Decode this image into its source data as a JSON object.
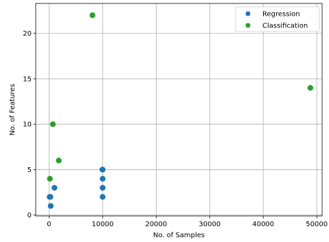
{
  "chart_data": {
    "type": "scatter",
    "title": "",
    "xlabel": "No. of Samples",
    "ylabel": "No. of Features",
    "xlim": [
      -2500,
      51000
    ],
    "ylim": [
      -0.1,
      23.3
    ],
    "xticks": [
      0,
      10000,
      20000,
      30000,
      40000,
      50000
    ],
    "yticks": [
      0,
      5,
      10,
      15,
      20
    ],
    "grid": true,
    "legend_position": "top-right",
    "series": [
      {
        "name": "Regression",
        "color": "#1f77b4",
        "points": [
          {
            "x": 100,
            "y": 2
          },
          {
            "x": 250,
            "y": 2
          },
          {
            "x": 300,
            "y": 1
          },
          {
            "x": 1000,
            "y": 3
          },
          {
            "x": 9950,
            "y": 5
          },
          {
            "x": 10000,
            "y": 5
          },
          {
            "x": 10000,
            "y": 4
          },
          {
            "x": 10000,
            "y": 3
          },
          {
            "x": 10000,
            "y": 2
          }
        ]
      },
      {
        "name": "Classification",
        "color": "#2ca02c",
        "points": [
          {
            "x": 8100,
            "y": 22
          },
          {
            "x": 48800,
            "y": 14
          },
          {
            "x": 700,
            "y": 10
          },
          {
            "x": 1800,
            "y": 6
          },
          {
            "x": 150,
            "y": 4
          }
        ]
      }
    ]
  }
}
